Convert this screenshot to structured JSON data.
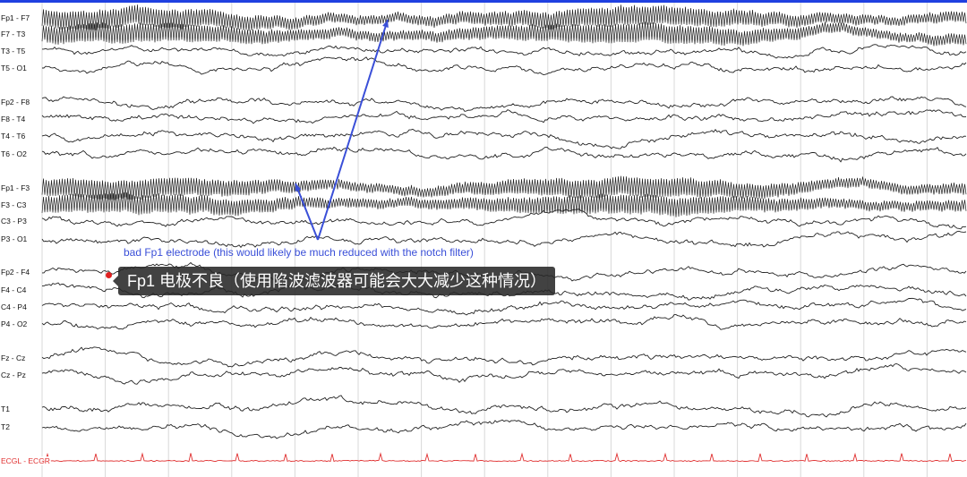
{
  "viewer": {
    "channels": [
      {
        "label": "Fp1 - F7",
        "artifact": true
      },
      {
        "label": "F7 - T3",
        "artifact": true
      },
      {
        "label": "T3 - T5"
      },
      {
        "label": "T5 - O1"
      },
      {
        "label": "Fp2 - F8"
      },
      {
        "label": "F8 - T4"
      },
      {
        "label": "T4 - T6"
      },
      {
        "label": "T6 - O2"
      },
      {
        "label": "Fp1 - F3",
        "artifact": true
      },
      {
        "label": "F3 - C3",
        "artifact": true
      },
      {
        "label": "C3 - P3"
      },
      {
        "label": "P3 - O1"
      },
      {
        "label": "Fp2 - F4"
      },
      {
        "label": "F4 - C4"
      },
      {
        "label": "C4 - P4"
      },
      {
        "label": "P4 - O2"
      },
      {
        "label": "Fz - Cz"
      },
      {
        "label": "Cz - Pz"
      },
      {
        "label": "T1"
      },
      {
        "label": "T2"
      },
      {
        "label": "ECGL - ECGR",
        "ecg": true
      }
    ],
    "colors": {
      "trace": "#222222",
      "ecg": "#e03030",
      "annotation": "#3a4fd8",
      "grid": "#d8d8d8"
    }
  },
  "annotation": {
    "english": "bad Fp1 electrode (this would likely be much reduced with the notch filter)",
    "chinese": "Fp1 电极不良（使用陷波滤波器可能会大大减少这种情况）"
  }
}
